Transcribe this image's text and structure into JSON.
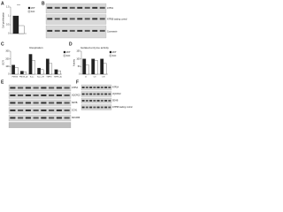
{
  "panel_letters": [
    "A",
    "B",
    "C",
    "D",
    "E",
    "F"
  ],
  "chart_data": [
    {
      "type": "bar",
      "ylabel": "Cell proliferation",
      "categories": [
        null
      ],
      "annotation": "***",
      "series": [
        {
          "name": "WT",
          "color": "#222222",
          "values": [
            1.0
          ]
        },
        {
          "name": "KO",
          "color": "#ffffff",
          "values": [
            0.45
          ]
        }
      ],
      "ylim": [
        0,
        1.5
      ],
      "yticks": [
        0,
        0.5,
        1,
        1.5
      ]
    },
    {
      "type": "bar",
      "title": "Respiration",
      "ylabel": "OCR",
      "categories": [
        "PMGS",
        "PMGS+A",
        "Succ",
        "Succ+R",
        "TMPD",
        "TMPD+A"
      ],
      "series": [
        {
          "name": "WT",
          "color": "#222222",
          "values": [
            120,
            40,
            260,
            80,
            200,
            60
          ]
        },
        {
          "name": "KO",
          "color": "#ffffff",
          "values": [
            90,
            30,
            180,
            60,
            140,
            45
          ]
        }
      ],
      "ylim": [
        0,
        300
      ],
      "yticks": [
        0,
        100,
        200,
        300
      ]
    },
    {
      "type": "bar",
      "title": "Isolated enzyme activity",
      "ylabel": "Activity",
      "categories": [
        "CI",
        "CII",
        "CIV"
      ],
      "series": [
        {
          "name": "WT",
          "color": "#222222",
          "values": [
            100,
            100,
            100
          ]
        },
        {
          "name": "KO",
          "color": "#ffffff",
          "values": [
            60,
            90,
            70
          ]
        }
      ],
      "ylim": [
        0,
        150
      ],
      "yticks": [
        0,
        50,
        100,
        150
      ]
    }
  ],
  "blots": [
    {
      "labels": [
        "ATP5A",
        "ATP5B loading control",
        "Coomassie"
      ]
    },
    {
      "labels": [
        "ATP5A",
        "UQCRC2",
        "SDHB",
        "COX1",
        "NDUFB8"
      ],
      "footer": "Coomassie loading control"
    },
    {
      "labels": [
        "ATP5A",
        "UQCRC2",
        "SDHB",
        "ATP5B loading control"
      ]
    }
  ]
}
